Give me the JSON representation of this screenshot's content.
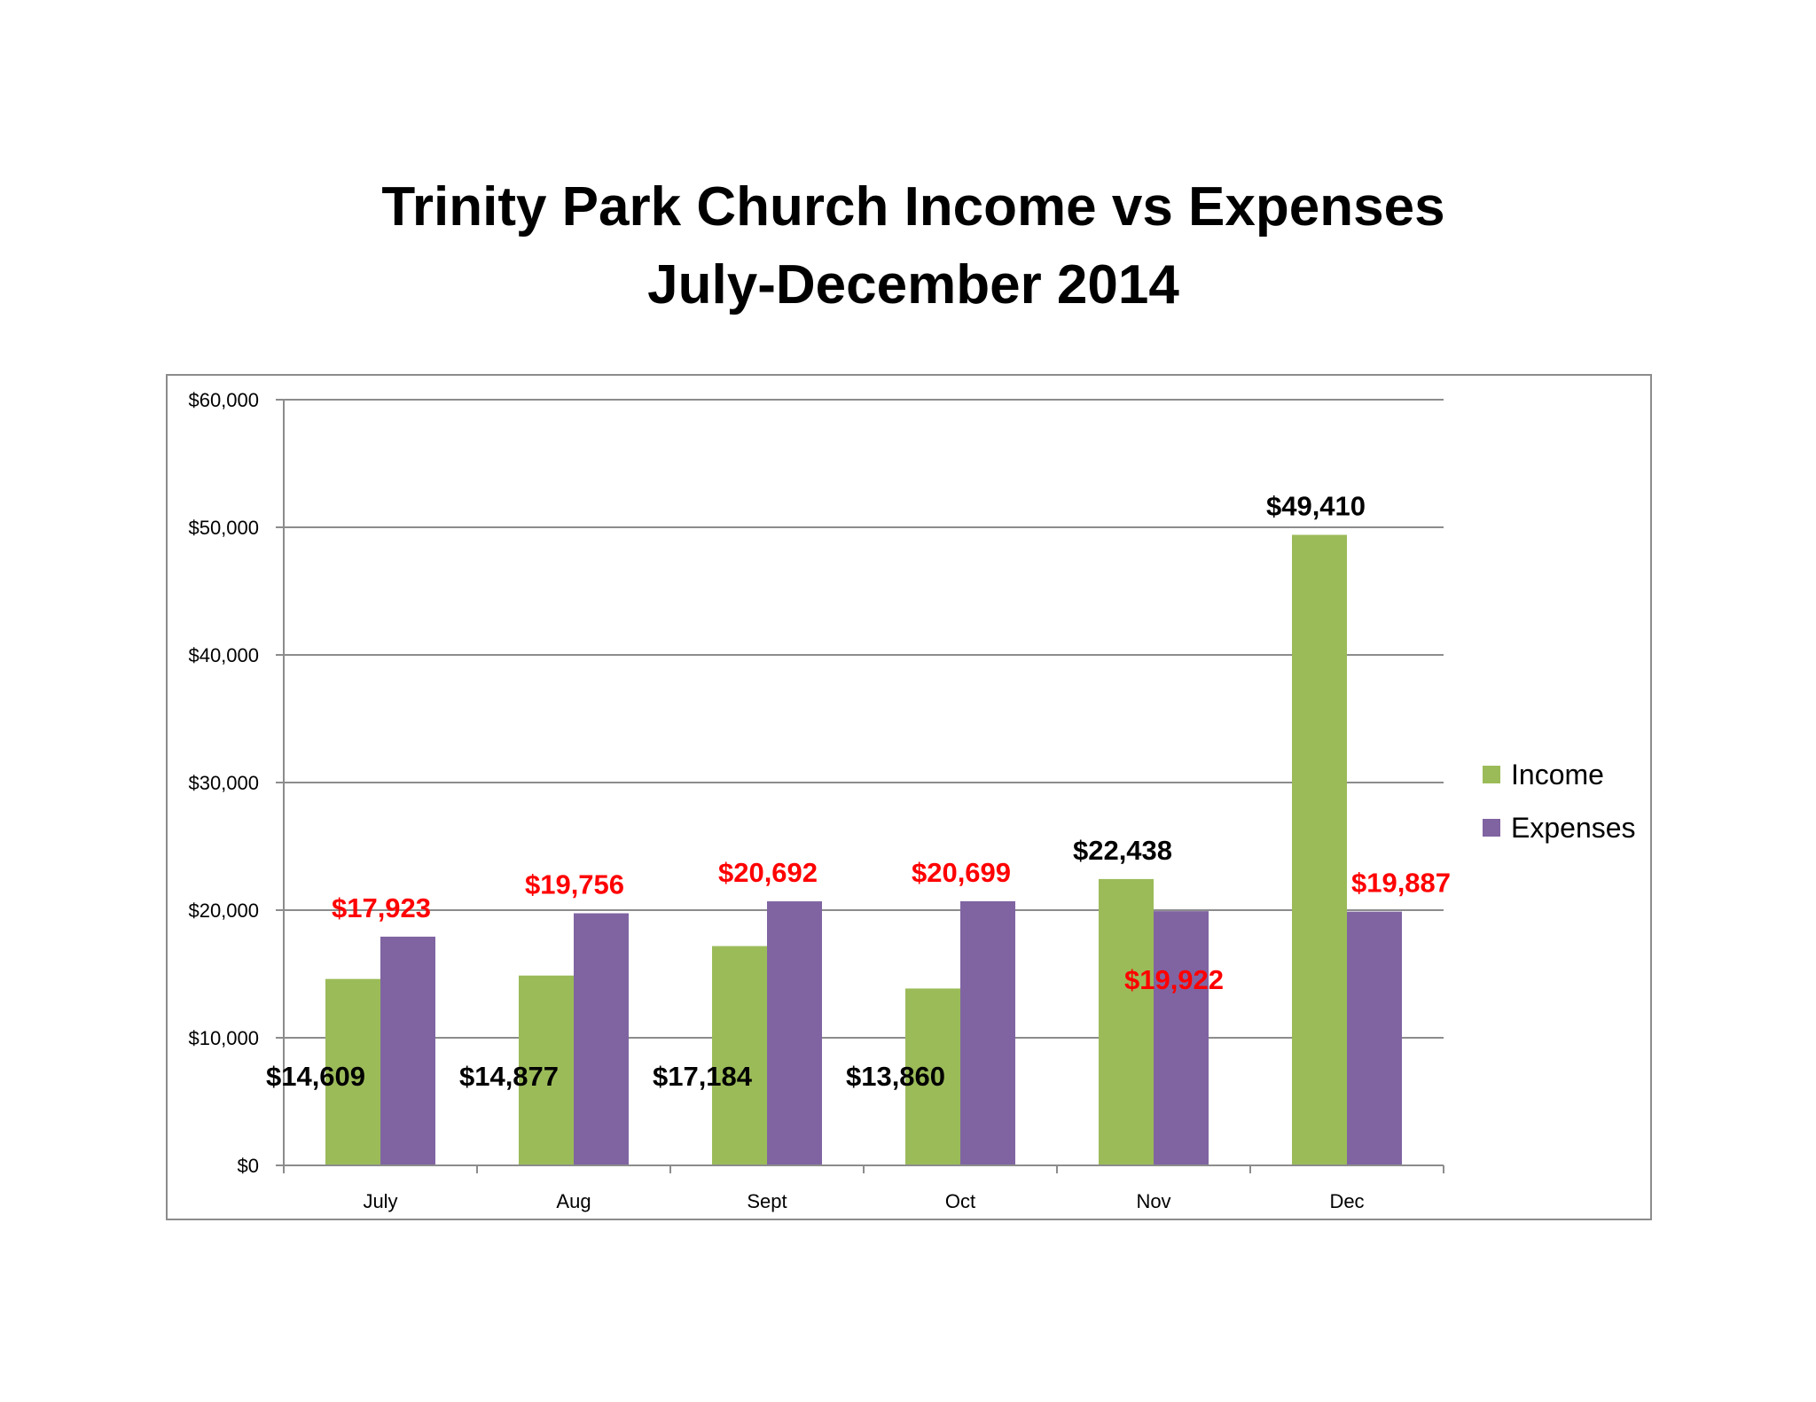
{
  "chart_data": {
    "type": "bar",
    "title": "Trinity Park Church Income vs Expenses",
    "subtitle": "July-December 2014",
    "categories": [
      "July",
      "Aug",
      "Sept",
      "Oct",
      "Nov",
      "Dec"
    ],
    "series": [
      {
        "name": "Income",
        "color": "#9BBB59",
        "values": [
          14609,
          14877,
          17184,
          13860,
          22438,
          49410
        ],
        "labels": [
          "$14,609",
          "$14,877",
          "$17,184",
          "$13,860",
          "$22,438",
          "$49,410"
        ],
        "label_color": "#000000"
      },
      {
        "name": "Expenses",
        "color": "#8064A2",
        "values": [
          17923,
          19756,
          20692,
          20699,
          19922,
          19887
        ],
        "labels": [
          "$17,923",
          "$19,756",
          "$20,692",
          "$20,699",
          "$19,922",
          "$19,887"
        ],
        "label_color": "#FF0000"
      }
    ],
    "ylim": [
      0,
      60000
    ],
    "yticks": [
      0,
      10000,
      20000,
      30000,
      40000,
      50000,
      60000
    ],
    "ytick_labels": [
      "$0",
      "$10,000",
      "$20,000",
      "$30,000",
      "$40,000",
      "$50,000",
      "$60,000"
    ],
    "xlabel": "",
    "ylabel": "",
    "grid": true,
    "legend_position": "right"
  }
}
